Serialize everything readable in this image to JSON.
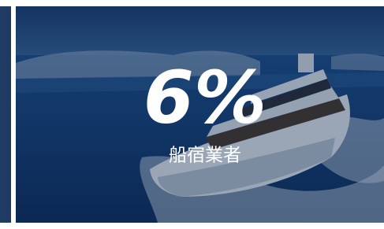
{
  "stat": {
    "value": "6%",
    "label": "船宿業者"
  }
}
